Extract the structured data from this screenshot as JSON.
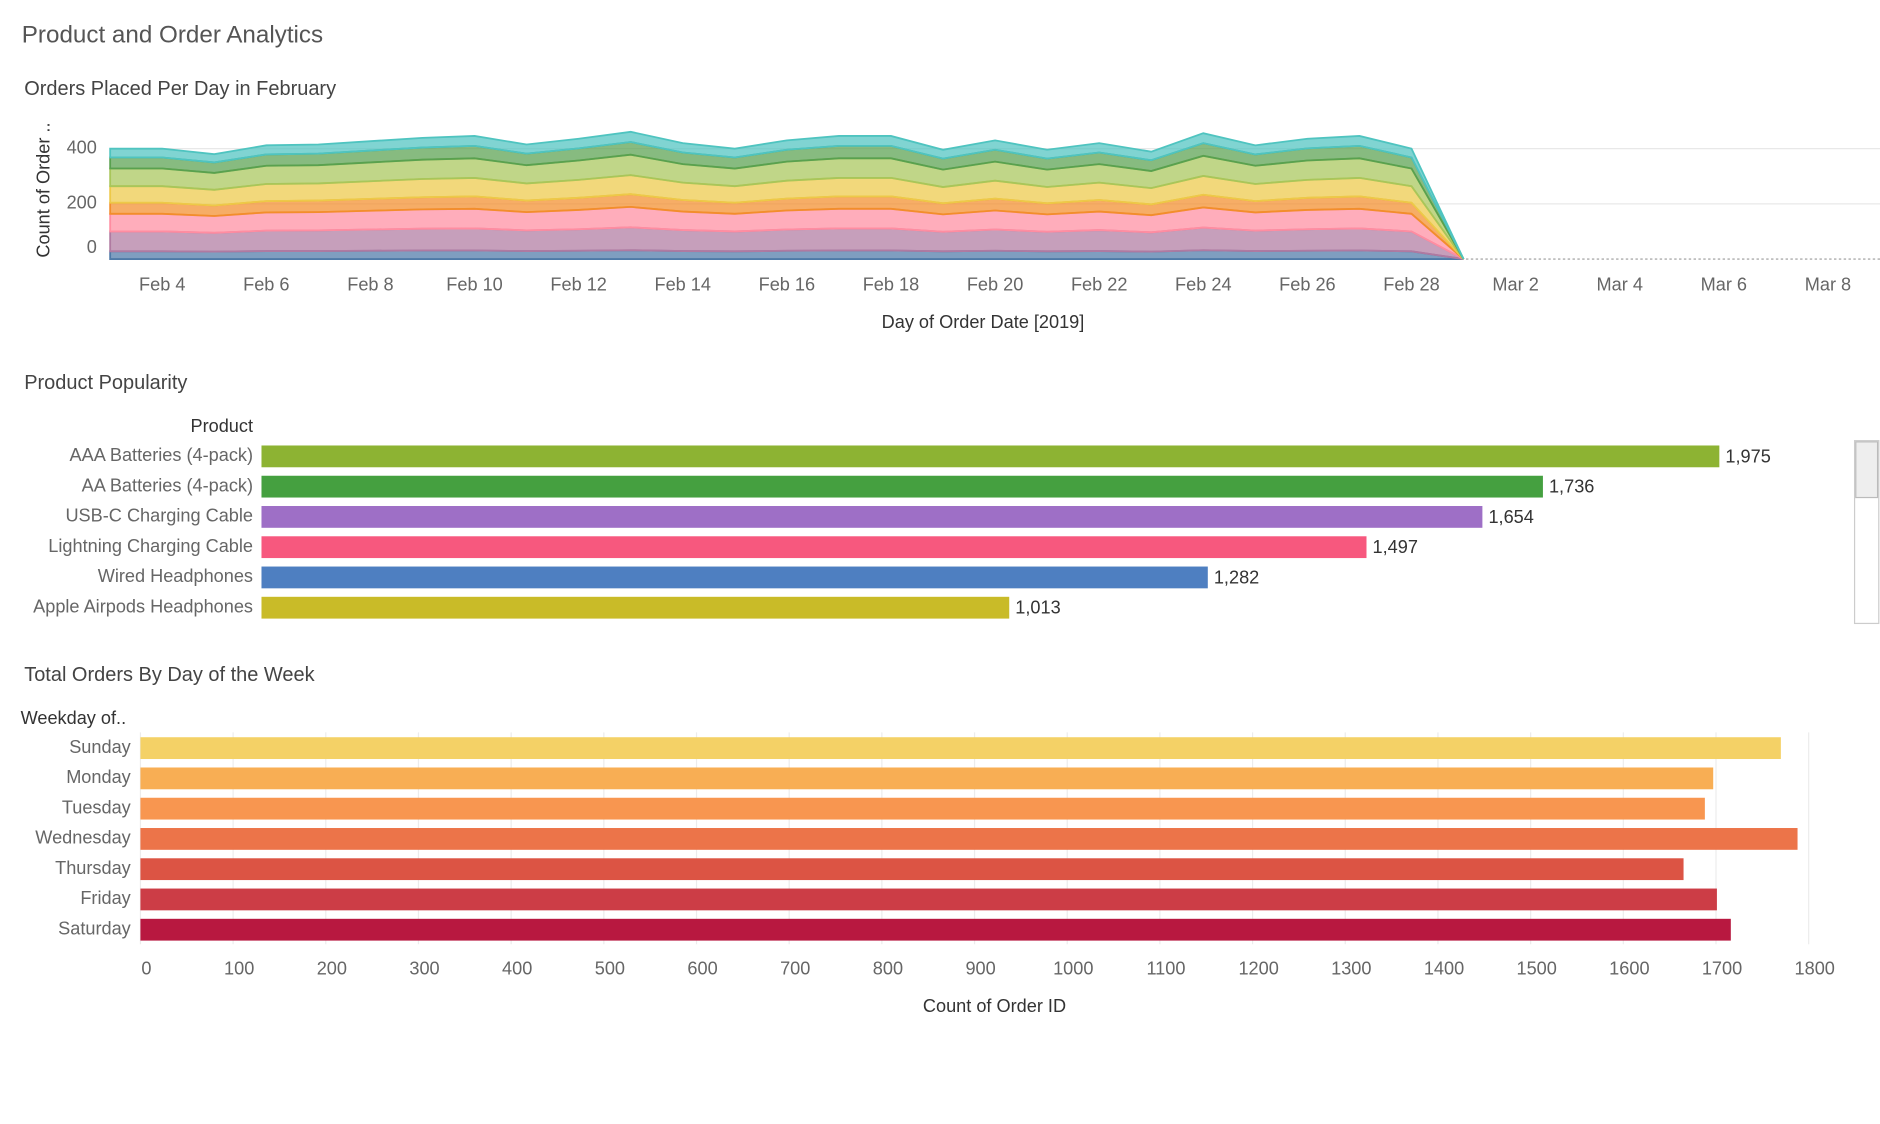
{
  "title": "Product and Order Analytics",
  "chart_data": [
    {
      "type": "area",
      "stacked": true,
      "title": "Orders Placed Per Day in February",
      "xlabel": "Day of Order Date [2019]",
      "ylabel": "Count of Order ..",
      "x": [
        "2019-02-03",
        "2019-02-04",
        "2019-02-05",
        "2019-02-06",
        "2019-02-07",
        "2019-02-08",
        "2019-02-09",
        "2019-02-10",
        "2019-02-11",
        "2019-02-12",
        "2019-02-13",
        "2019-02-14",
        "2019-02-15",
        "2019-02-16",
        "2019-02-17",
        "2019-02-18",
        "2019-02-19",
        "2019-02-20",
        "2019-02-21",
        "2019-02-22",
        "2019-02-23",
        "2019-02-24",
        "2019-02-25",
        "2019-02-26",
        "2019-02-27",
        "2019-02-28",
        "2019-03-01"
      ],
      "xlim": [
        "2019-02-03",
        "2019-03-09"
      ],
      "xticks": [
        {
          "value": "2019-02-04",
          "label": "Feb 4"
        },
        {
          "value": "2019-02-06",
          "label": "Feb 6"
        },
        {
          "value": "2019-02-08",
          "label": "Feb 8"
        },
        {
          "value": "2019-02-10",
          "label": "Feb 10"
        },
        {
          "value": "2019-02-12",
          "label": "Feb 12"
        },
        {
          "value": "2019-02-14",
          "label": "Feb 14"
        },
        {
          "value": "2019-02-16",
          "label": "Feb 16"
        },
        {
          "value": "2019-02-18",
          "label": "Feb 18"
        },
        {
          "value": "2019-02-20",
          "label": "Feb 20"
        },
        {
          "value": "2019-02-22",
          "label": "Feb 22"
        },
        {
          "value": "2019-02-24",
          "label": "Feb 24"
        },
        {
          "value": "2019-02-26",
          "label": "Feb 26"
        },
        {
          "value": "2019-02-28",
          "label": "Feb 28"
        },
        {
          "value": "2019-03-02",
          "label": "Mar 2"
        },
        {
          "value": "2019-03-04",
          "label": "Mar 4"
        },
        {
          "value": "2019-03-06",
          "label": "Mar 6"
        },
        {
          "value": "2019-03-08",
          "label": "Mar 8"
        }
      ],
      "ylim": [
        0,
        500
      ],
      "yticks": [
        0,
        200,
        400
      ],
      "grid": true,
      "series": [
        {
          "color": "#4e79a7",
          "values": [
            28,
            28,
            27,
            29,
            29,
            30,
            31,
            31,
            29,
            30,
            32,
            29,
            28,
            30,
            31,
            31,
            28,
            30,
            28,
            29,
            27,
            32,
            29,
            30,
            31,
            28,
            0
          ]
        },
        {
          "color": "#b07aa1",
          "values": [
            72,
            72,
            68,
            74,
            75,
            77,
            79,
            80,
            75,
            78,
            83,
            76,
            72,
            77,
            80,
            80,
            71,
            77,
            71,
            76,
            70,
            82,
            74,
            78,
            80,
            72,
            0
          ]
        },
        {
          "color": "#ff8da1",
          "values": [
            64,
            64,
            61,
            66,
            66,
            68,
            70,
            71,
            66,
            70,
            74,
            67,
            64,
            69,
            71,
            71,
            63,
            69,
            63,
            67,
            62,
            73,
            66,
            70,
            71,
            64,
            0
          ]
        },
        {
          "color": "#f28e2b",
          "values": [
            40,
            40,
            38,
            41,
            42,
            43,
            44,
            45,
            42,
            44,
            46,
            42,
            40,
            43,
            45,
            45,
            40,
            43,
            40,
            42,
            39,
            46,
            41,
            44,
            45,
            40,
            0
          ]
        },
        {
          "color": "#edc948",
          "values": [
            60,
            60,
            57,
            62,
            62,
            64,
            66,
            67,
            62,
            65,
            69,
            63,
            60,
            65,
            67,
            67,
            59,
            65,
            59,
            63,
            59,
            68,
            62,
            65,
            67,
            60,
            0
          ]
        },
        {
          "color": "#a8c65a",
          "values": [
            64,
            64,
            61,
            66,
            66,
            68,
            70,
            71,
            66,
            70,
            74,
            67,
            64,
            69,
            71,
            71,
            63,
            69,
            63,
            67,
            62,
            73,
            66,
            70,
            71,
            64,
            0
          ]
        },
        {
          "color": "#59a14f",
          "values": [
            40,
            40,
            38,
            41,
            42,
            43,
            44,
            45,
            42,
            44,
            46,
            42,
            40,
            43,
            45,
            45,
            40,
            43,
            40,
            42,
            39,
            46,
            41,
            44,
            45,
            40,
            0
          ]
        },
        {
          "color": "#4fc4c0",
          "values": [
            32,
            32,
            30,
            33,
            33,
            34,
            35,
            36,
            33,
            35,
            37,
            34,
            32,
            34,
            36,
            36,
            32,
            34,
            32,
            34,
            31,
            36,
            33,
            35,
            36,
            32,
            0
          ]
        }
      ]
    },
    {
      "type": "bar",
      "orientation": "horizontal",
      "title": "Product Popularity",
      "category_header": "Product",
      "categories": [
        "AAA Batteries (4-pack)",
        "AA Batteries (4-pack)",
        "USB-C Charging Cable",
        "Lightning Charging Cable",
        "Wired Headphones",
        "Apple Airpods Headphones"
      ],
      "values": [
        1975,
        1736,
        1654,
        1497,
        1282,
        1013
      ],
      "value_labels": [
        "1,975",
        "1,736",
        "1,654",
        "1,497",
        "1,282",
        "1,013"
      ],
      "colors": [
        "#8db333",
        "#45a040",
        "#9e6fc6",
        "#f7587e",
        "#4e7fc1",
        "#c9bb28"
      ],
      "xlim": [
        0,
        2150
      ]
    },
    {
      "type": "bar",
      "orientation": "horizontal",
      "title": "Total Orders By Day of the Week",
      "category_header": "Weekday of..",
      "xlabel": "Count of Order ID",
      "categories": [
        "Sunday",
        "Monday",
        "Tuesday",
        "Wednesday",
        "Thursday",
        "Friday",
        "Saturday"
      ],
      "values": [
        1770,
        1697,
        1688,
        1788,
        1665,
        1701,
        1716
      ],
      "colors": [
        "#f4d166",
        "#f8ae54",
        "#f89650",
        "#ec7449",
        "#dc5444",
        "#cc3d46",
        "#b81840"
      ],
      "xlim": [
        0,
        1843
      ],
      "xticks": [
        0,
        100,
        200,
        300,
        400,
        500,
        600,
        700,
        800,
        900,
        1000,
        1100,
        1200,
        1300,
        1400,
        1500,
        1600,
        1700,
        1800
      ],
      "grid": true
    }
  ]
}
